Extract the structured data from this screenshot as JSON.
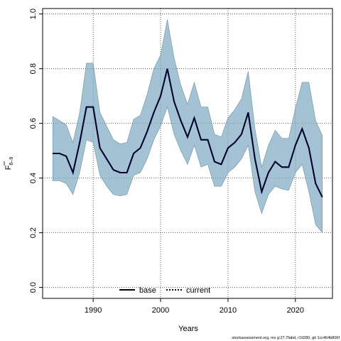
{
  "chart_data": {
    "type": "area",
    "title": "",
    "xlabel": "Years",
    "ylabel_main": "F",
    "ylabel_sub": "6–9",
    "xlim": [
      1982.5,
      2025.5
    ],
    "ylim": [
      -0.04,
      1.02
    ],
    "xticks": [
      1990,
      2000,
      2010,
      2020
    ],
    "xtick_labels": [
      "1990",
      "2000",
      "2010",
      "2020"
    ],
    "yticks": [
      0.0,
      0.2,
      0.4,
      0.6,
      0.8,
      1.0
    ],
    "ytick_labels": [
      "0.0",
      "0.2",
      "0.4",
      "0.6",
      "0.8",
      "1.0"
    ],
    "grid": true,
    "legend_position": "bottom-center",
    "years": [
      1984,
      1985,
      1986,
      1987,
      1988,
      1989,
      1990,
      1991,
      1992,
      1993,
      1994,
      1995,
      1996,
      1997,
      1998,
      1999,
      2000,
      2001,
      2002,
      2003,
      2004,
      2005,
      2006,
      2007,
      2008,
      2009,
      2010,
      2011,
      2012,
      2013,
      2014,
      2015,
      2016,
      2017,
      2018,
      2019,
      2020,
      2021,
      2022,
      2023,
      2024
    ],
    "series": [
      {
        "name": "base",
        "style": "solid",
        "color": "#000000",
        "values": [
          0.49,
          0.49,
          0.48,
          0.42,
          0.53,
          0.66,
          0.66,
          0.51,
          0.47,
          0.43,
          0.42,
          0.42,
          0.49,
          0.51,
          0.57,
          0.64,
          0.7,
          0.8,
          0.68,
          0.61,
          0.55,
          0.62,
          0.54,
          0.54,
          0.46,
          0.45,
          0.51,
          0.53,
          0.56,
          0.64,
          0.47,
          0.35,
          0.42,
          0.46,
          0.44,
          0.44,
          0.52,
          0.58,
          0.51,
          0.38,
          0.33
        ]
      },
      {
        "name": "current",
        "style": "dotted",
        "color": "#00005a",
        "values": [
          0.49,
          0.49,
          0.48,
          0.42,
          0.53,
          0.66,
          0.66,
          0.51,
          0.47,
          0.43,
          0.42,
          0.42,
          0.49,
          0.51,
          0.57,
          0.64,
          0.7,
          0.8,
          0.68,
          0.61,
          0.55,
          0.62,
          0.54,
          0.54,
          0.46,
          0.45,
          0.51,
          0.53,
          0.56,
          0.64,
          0.47,
          0.35,
          0.42,
          0.46,
          0.44,
          0.44,
          0.52,
          0.58,
          0.51,
          0.38,
          0.33
        ]
      }
    ],
    "band": {
      "color": "#7faac4",
      "lower": [
        0.39,
        0.39,
        0.38,
        0.34,
        0.42,
        0.54,
        0.53,
        0.41,
        0.37,
        0.34,
        0.335,
        0.34,
        0.41,
        0.42,
        0.47,
        0.54,
        0.59,
        0.66,
        0.56,
        0.5,
        0.45,
        0.52,
        0.44,
        0.45,
        0.37,
        0.37,
        0.42,
        0.44,
        0.47,
        0.52,
        0.35,
        0.27,
        0.34,
        0.37,
        0.36,
        0.355,
        0.42,
        0.45,
        0.35,
        0.23,
        0.2
      ],
      "upper": [
        0.625,
        0.61,
        0.595,
        0.53,
        0.64,
        0.82,
        0.82,
        0.64,
        0.59,
        0.54,
        0.525,
        0.53,
        0.615,
        0.63,
        0.705,
        0.8,
        0.85,
        0.98,
        0.84,
        0.74,
        0.67,
        0.75,
        0.66,
        0.66,
        0.56,
        0.55,
        0.62,
        0.65,
        0.69,
        0.79,
        0.58,
        0.44,
        0.52,
        0.575,
        0.545,
        0.545,
        0.655,
        0.75,
        0.75,
        0.61,
        0.555
      ]
    }
  },
  "footer": {
    "text": "stockassessment.org, ms g:27.7fabd, r19280, git 1cc464b806f"
  }
}
